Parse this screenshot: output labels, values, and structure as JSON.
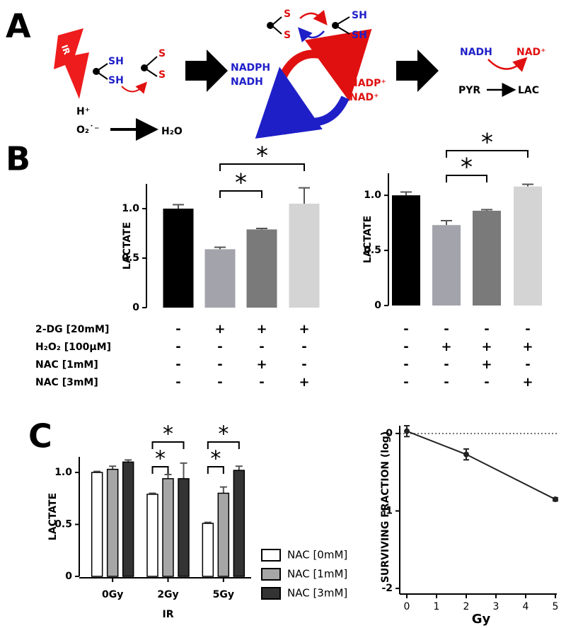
{
  "panel_labels": [
    "A",
    "B",
    "C"
  ],
  "diagram": {
    "ir": "IR",
    "thiol_sh_1": "SH",
    "thiol_sh_2": "SH",
    "disulfide_s_1": "S",
    "disulfide_s_2": "S",
    "proton": "H⁺",
    "superoxide": "O₂˙⁻",
    "water": "H₂O",
    "nadph": "NADPH",
    "nadh": "NADH",
    "nadp_plus": "NADP⁺",
    "nad_plus": "NAD⁺",
    "top_s_1": "S",
    "top_s_2": "S",
    "top_sh_1": "SH",
    "top_sh_2": "SH",
    "right_nadh": "NADH",
    "right_nad_plus": "NAD⁺",
    "pyr": "PYR",
    "lac": "LAC"
  },
  "conditions": {
    "rows": [
      {
        "label": "2-DG [20mM]",
        "left": [
          "-",
          "+",
          "+",
          "+"
        ],
        "right": [
          "-",
          "-",
          "-",
          "-"
        ]
      },
      {
        "label": "H₂O₂ [100μM]",
        "left": [
          "-",
          "-",
          "-",
          "-"
        ],
        "right": [
          "-",
          "+",
          "+",
          "+"
        ]
      },
      {
        "label": "NAC [1mM]",
        "left": [
          "-",
          "-",
          "+",
          "-"
        ],
        "right": [
          "-",
          "-",
          "+",
          "-"
        ]
      },
      {
        "label": "NAC [3mM]",
        "left": [
          "-",
          "-",
          "-",
          "+"
        ],
        "right": [
          "-",
          "-",
          "-",
          "+"
        ]
      }
    ]
  },
  "chart_data": [
    {
      "type": "bar",
      "y_label": "LACTATE",
      "values": [
        1.0,
        0.59,
        0.79,
        1.05
      ],
      "errors": [
        0.04,
        0.02,
        0.01,
        0.16
      ],
      "colors": [
        "#000000",
        "#a3a3ab",
        "#7a7a7a",
        "#d4d4d4"
      ],
      "ylim": [
        0,
        1.25
      ],
      "yticks": [
        0,
        0.5,
        {
          "value": 1,
          "label": "1.0"
        }
      ],
      "significance": [
        "*",
        "*"
      ]
    },
    {
      "type": "bar",
      "y_label": "LACTATE",
      "values": [
        1.0,
        0.73,
        0.86,
        1.08
      ],
      "errors": [
        0.03,
        0.04,
        0.01,
        0.02
      ],
      "colors": [
        "#000000",
        "#a3a3ab",
        "#7a7a7a",
        "#d4d4d4"
      ],
      "ylim": [
        0,
        1.2
      ],
      "yticks": [
        0,
        0.5,
        {
          "value": 1,
          "label": "1.0"
        }
      ],
      "significance": [
        "*",
        "*"
      ]
    },
    {
      "type": "grouped_bar",
      "y_label": "LACTATE",
      "x_label": "IR",
      "categories": [
        "0Gy",
        "2Gy",
        "5Gy"
      ],
      "series": [
        {
          "name": "NAC [0mM]",
          "color": "#ffffff",
          "values": [
            1.0,
            0.79,
            0.51
          ],
          "errors": [
            0.01,
            0.01,
            0.01
          ]
        },
        {
          "name": "NAC [1mM]",
          "color": "#a6a6a6",
          "values": [
            1.03,
            0.94,
            0.8
          ],
          "errors": [
            0.03,
            0.04,
            0.06
          ]
        },
        {
          "name": "NAC [3mM]",
          "color": "#333333",
          "values": [
            1.1,
            0.94,
            1.02
          ],
          "errors": [
            0.02,
            0.15,
            0.04
          ]
        }
      ],
      "ylim": [
        0,
        1.15
      ],
      "yticks": [
        0,
        0.5,
        {
          "value": 1,
          "label": "1.0"
        }
      ],
      "significance": [
        "*",
        "*",
        "*",
        "*"
      ]
    },
    {
      "type": "line",
      "y_label": "SURVIVING FRACTION (log)",
      "x_label": "Gy",
      "x": [
        0,
        2,
        5
      ],
      "values": [
        0.03,
        -0.27,
        -0.85
      ],
      "errors": [
        0.07,
        0.07,
        0.02
      ],
      "color": "#222222",
      "xlim": [
        0,
        5
      ],
      "xticks": [
        0,
        1,
        2,
        3,
        4,
        5
      ],
      "ylim": [
        -2,
        0.1
      ],
      "yticks": [
        -2,
        -1,
        0
      ],
      "reference_line": 0
    }
  ]
}
